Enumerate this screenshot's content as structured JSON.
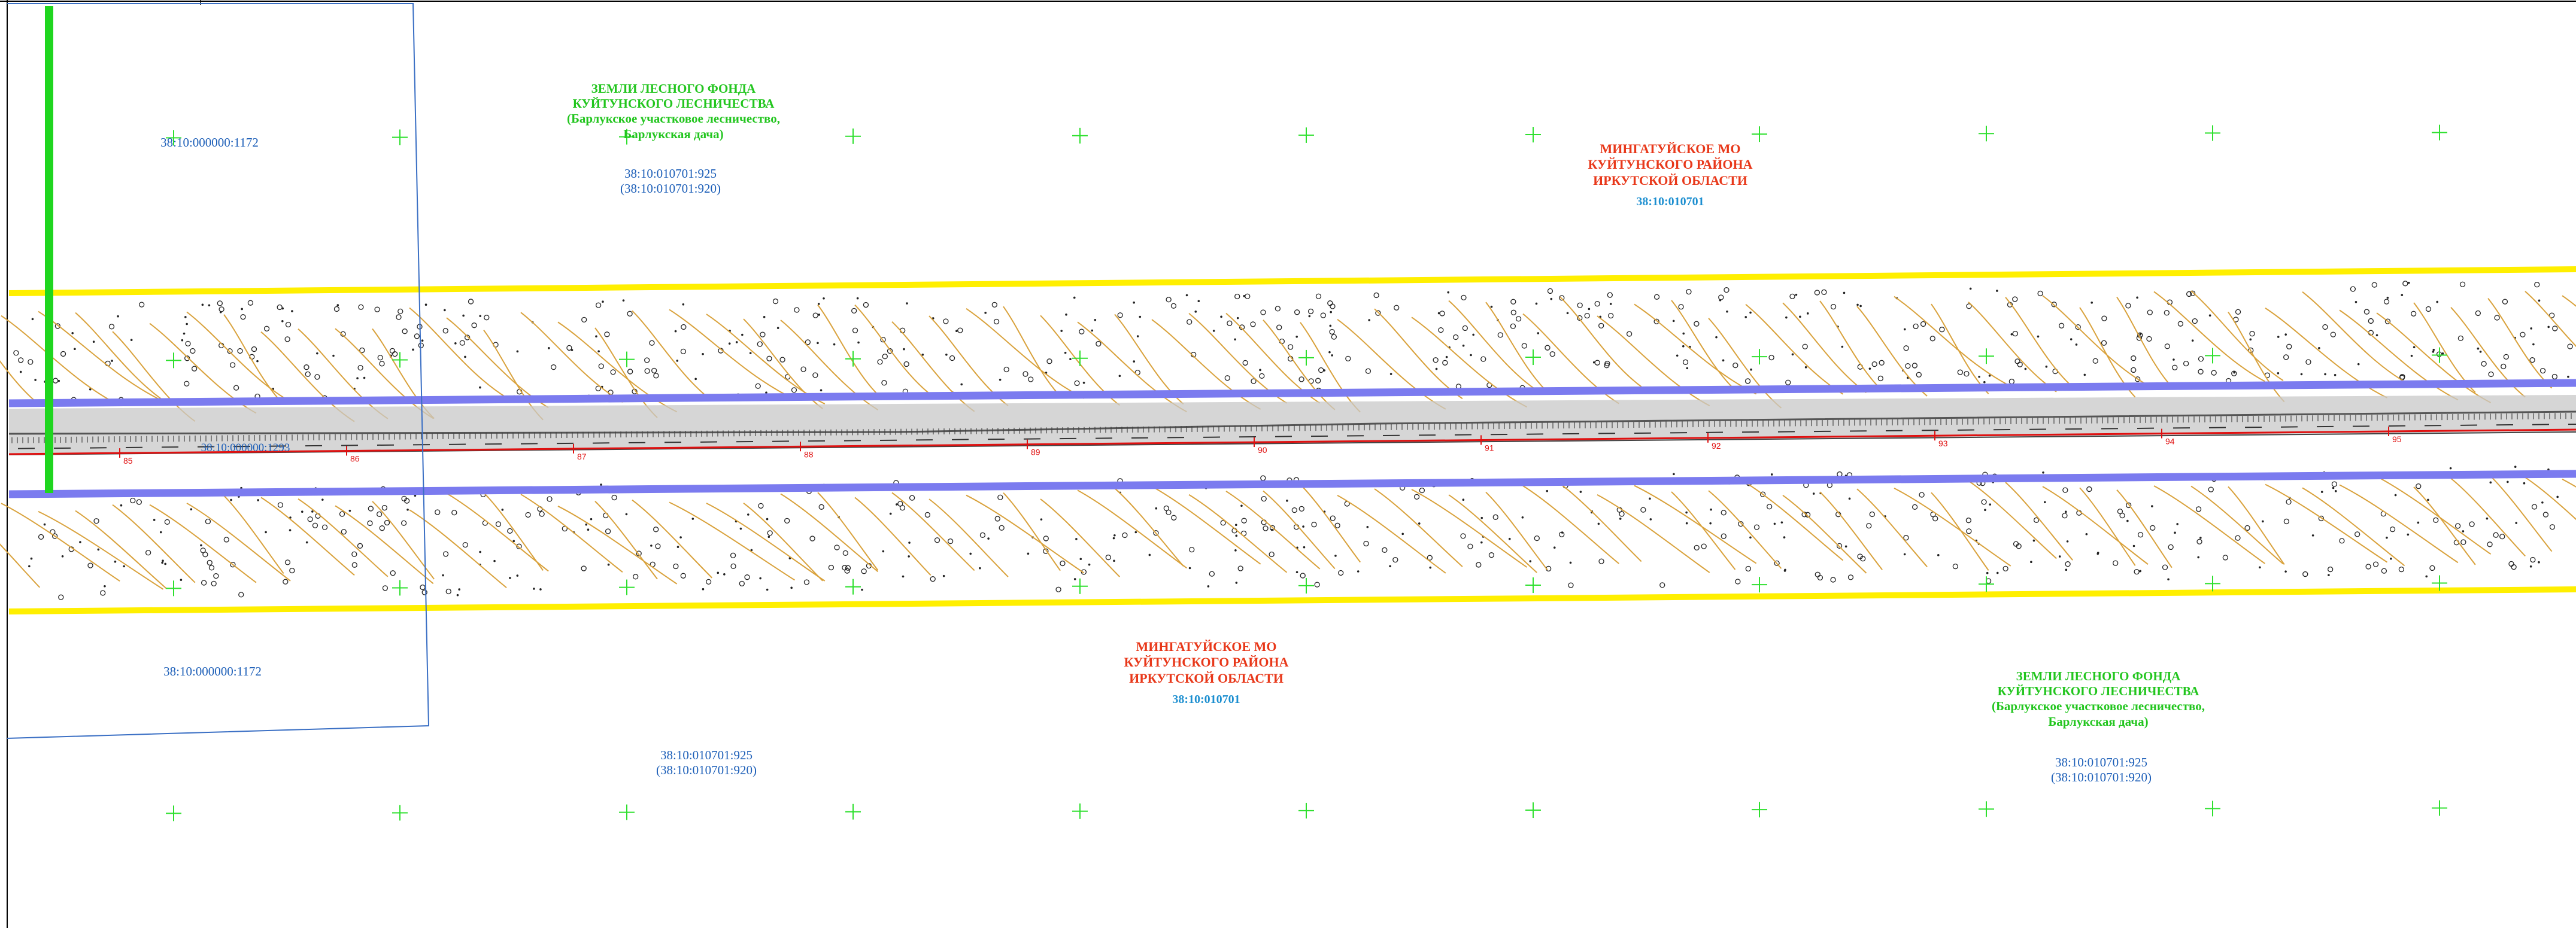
{
  "colors": {
    "background": "#ffffff",
    "corridor_border": "#ffef00",
    "right_of_way": "#7b7bef",
    "road": "#c8c8c8",
    "axis": "#e01010",
    "contour": "#d9a23c",
    "plot_boundary": "#3a6fc4",
    "green_line": "#1fd61f",
    "grid_cross": "#2ee02e",
    "forest_text": "#22c51e",
    "mo_text": "#e8381a",
    "cadastral_text": "#1d5fb8"
  },
  "labels": {
    "forest_top": {
      "line1": "ЗЕМЛИ ЛЕСНОГО ФОНДА",
      "line2": "КУЙТУНСКОГО ЛЕСНИЧЕСТВА",
      "line3": "(Барлукское участковое лесничество,",
      "line4": "Барлукская дача)"
    },
    "forest_bottom": {
      "line1": "ЗЕМЛИ ЛЕСНОГО ФОНДА",
      "line2": "КУЙТУНСКОГО ЛЕСНИЧЕСТВА",
      "line3": "(Барлукское участковое лесничество,",
      "line4": "Барлукская дача)"
    },
    "mo_top": {
      "line1": "МИНГАТУЙСКОЕ МО",
      "line2": "КУЙТУНСКОГО РАЙОНА",
      "line3": "ИРКУТСКОЙ ОБЛАСТИ",
      "quarter": "38:10:010701"
    },
    "mo_bottom": {
      "line1": "МИНГАТУЙСКОЕ МО",
      "line2": "КУЙТУНСКОГО РАЙОНА",
      "line3": "ИРКУТСКОЙ ОБЛАСТИ",
      "quarter": "38:10:010701"
    },
    "parcel_left_top": "38:10:000000:1172",
    "parcel_left_bottom": "38:10:000000:1172",
    "parcel_road": "38:10:000000:1293",
    "cad_top": {
      "line1": "38:10:010701:925",
      "line2": "(38:10:010701:920)"
    },
    "cad_bottom_left": {
      "line1": "38:10:010701:925",
      "line2": "(38:10:010701:920)"
    },
    "cad_bottom_right": {
      "line1": "38:10:010701:925",
      "line2": "(38:10:010701:920)"
    }
  },
  "pickets": [
    "85",
    "86",
    "87",
    "88",
    "89",
    "90",
    "91",
    "92",
    "93",
    "94",
    "95"
  ]
}
